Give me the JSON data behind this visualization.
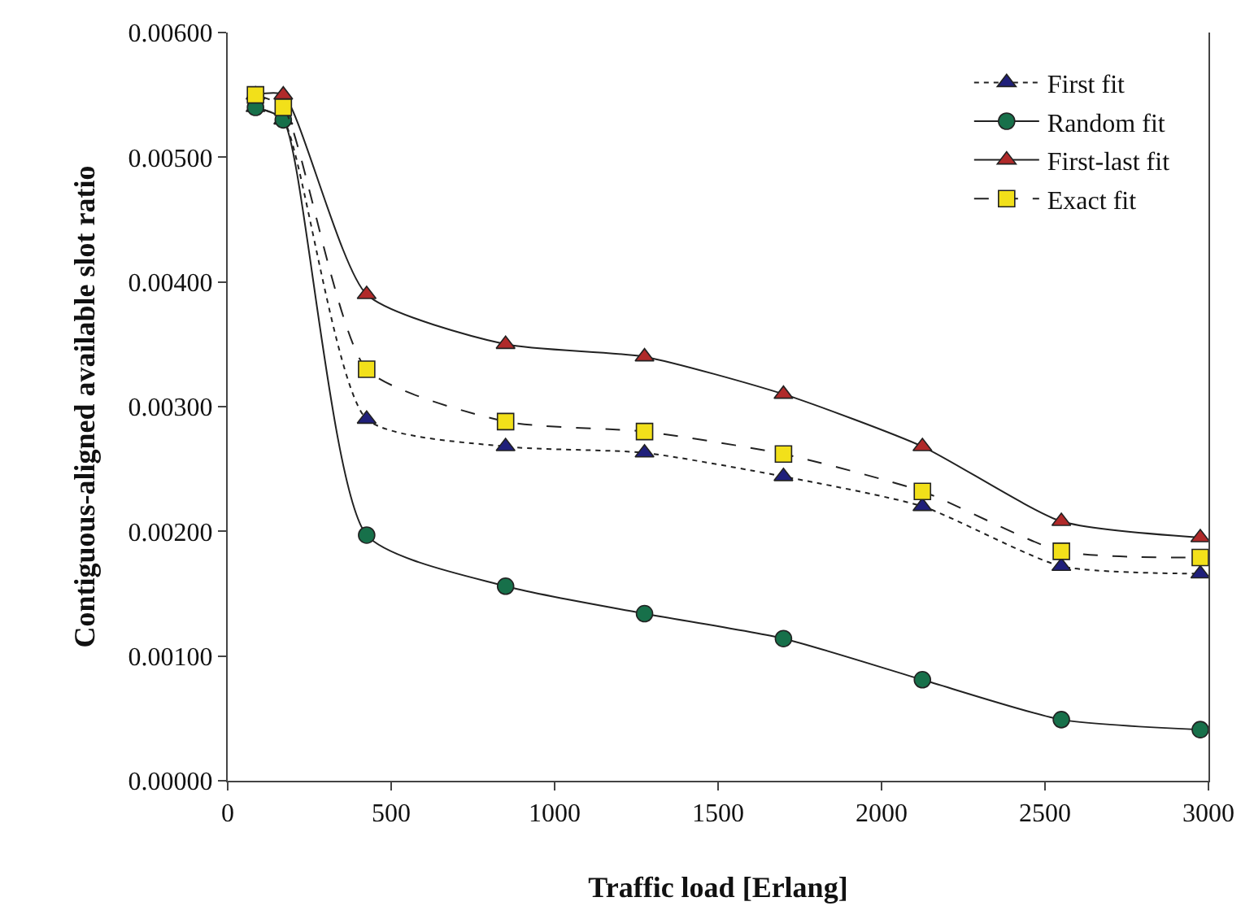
{
  "chart_data": {
    "type": "line",
    "xlabel": "Traffic load [Erlang]",
    "ylabel": "Contiguous-aligned available slot ratio",
    "x": [
      85,
      170,
      425,
      850,
      1275,
      1700,
      2125,
      2550,
      2975
    ],
    "series": [
      {
        "name": "First fit",
        "color": "#1f1f7a",
        "marker": "triangle",
        "line_style": "dotted",
        "values": [
          0.0054,
          0.0053,
          0.0029,
          0.00268,
          0.00263,
          0.00244,
          0.0022,
          0.00172,
          0.00166
        ]
      },
      {
        "name": "Random fit",
        "color": "#17704a",
        "marker": "circle",
        "line_style": "solid",
        "values": [
          0.0054,
          0.0053,
          0.00197,
          0.00156,
          0.00134,
          0.00114,
          0.00081,
          0.00049,
          0.00041
        ]
      },
      {
        "name": "First-last fit",
        "color": "#b02a2a",
        "marker": "triangle",
        "line_style": "solid",
        "values": [
          0.0055,
          0.0055,
          0.0039,
          0.0035,
          0.0034,
          0.0031,
          0.00268,
          0.00208,
          0.00195
        ]
      },
      {
        "name": "Exact fit",
        "color": "#f2e01a",
        "marker": "square",
        "line_style": "dashed",
        "values": [
          0.0055,
          0.0054,
          0.0033,
          0.00288,
          0.0028,
          0.00262,
          0.00232,
          0.00184,
          0.00179
        ]
      }
    ],
    "xlim": [
      0,
      3000
    ],
    "xticks": [
      0,
      500,
      1000,
      1500,
      2000,
      2500,
      3000
    ],
    "ylim": [
      0,
      0.006
    ],
    "yticks": [
      {
        "value": 0,
        "label": "0.00000"
      },
      {
        "value": 0.001,
        "label": "0.00100"
      },
      {
        "value": 0.002,
        "label": "0.00200"
      },
      {
        "value": 0.003,
        "label": "0.00300"
      },
      {
        "value": 0.004,
        "label": "0.00400"
      },
      {
        "value": 0.005,
        "label": "0.00500"
      },
      {
        "value": 0.006,
        "label": "0.00600"
      }
    ],
    "grid": false,
    "legend": "top right"
  }
}
